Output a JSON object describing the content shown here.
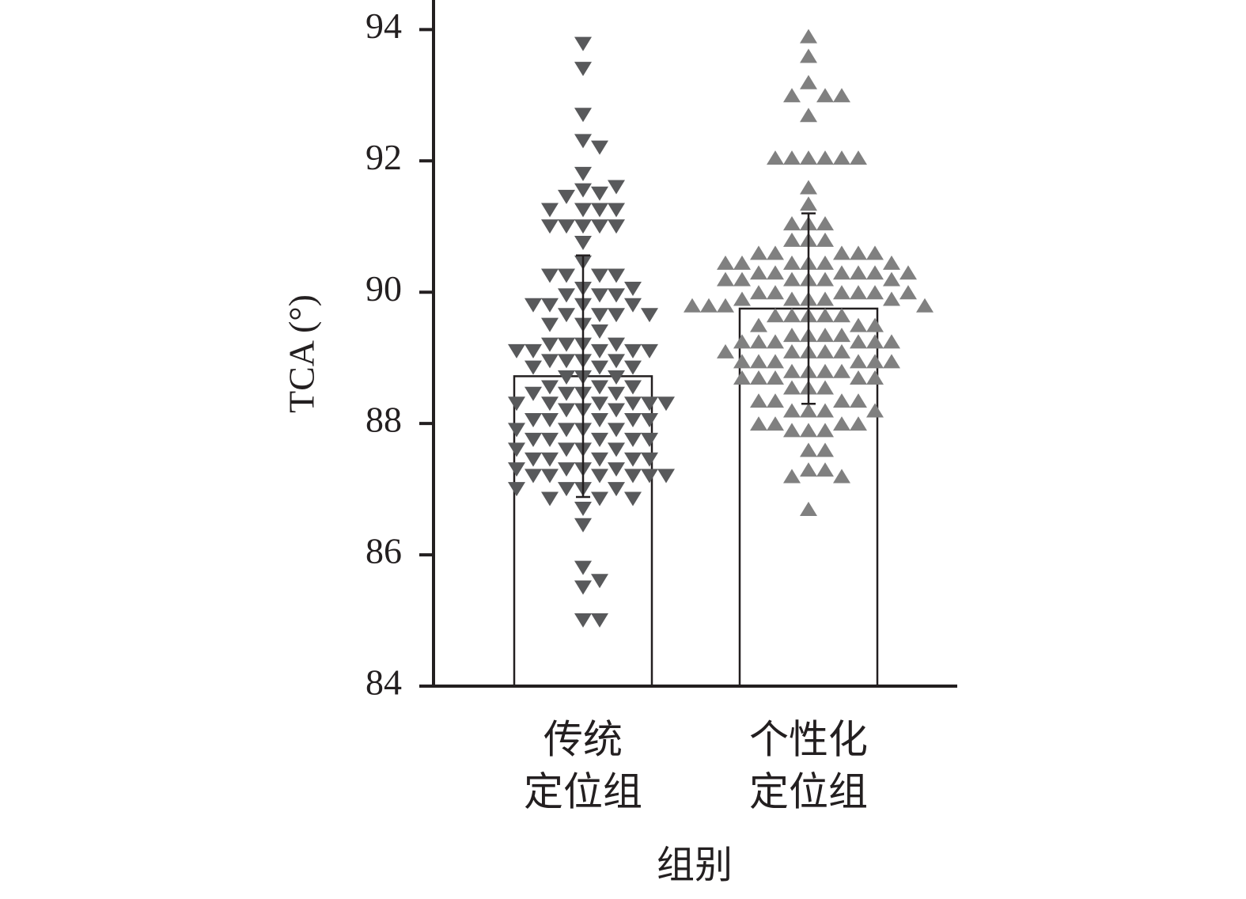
{
  "chart_data": {
    "type": "bar",
    "categories": [
      [
        "传统",
        "定位组"
      ],
      [
        "个性化",
        "定位组"
      ]
    ],
    "values": [
      88.72,
      89.75
    ],
    "errors": [
      1.84,
      1.45
    ],
    "points": [
      [
        93.78,
        93.4,
        92.7,
        92.3,
        92.2,
        91.8,
        91.55,
        91.5,
        91.45,
        91.6,
        91.25,
        91.25,
        91.25,
        91.25,
        91.0,
        91.0,
        91.0,
        91.0,
        91.0,
        90.75,
        90.45,
        90.25,
        90.25,
        90.25,
        90.25,
        90.05,
        90.05,
        89.95,
        89.95,
        89.95,
        89.8,
        89.8,
        89.8,
        89.8,
        89.65,
        89.65,
        89.65,
        89.65,
        89.5,
        89.5,
        89.4,
        89.2,
        89.2,
        89.2,
        89.2,
        89.1,
        89.1,
        89.1,
        89.1,
        89.1,
        88.95,
        88.95,
        88.95,
        88.95,
        88.85,
        88.85,
        88.85,
        88.7,
        88.7,
        88.7,
        88.55,
        88.55,
        88.55,
        88.45,
        88.45,
        88.45,
        88.45,
        88.3,
        88.3,
        88.3,
        88.3,
        88.3,
        88.3,
        88.2,
        88.2,
        88.2,
        88.05,
        88.05,
        88.05,
        88.05,
        88.05,
        87.9,
        87.9,
        87.9,
        87.9,
        87.75,
        87.75,
        87.75,
        87.75,
        87.75,
        87.6,
        87.6,
        87.6,
        87.6,
        87.45,
        87.45,
        87.45,
        87.45,
        87.45,
        87.3,
        87.3,
        87.3,
        87.3,
        87.2,
        87.2,
        87.2,
        87.2,
        87.2,
        87.2,
        87.0,
        87.0,
        87.0,
        87.0,
        86.85,
        86.85,
        86.85,
        86.7,
        86.45,
        85.8,
        85.6,
        85.5,
        85.0,
        85.0
      ],
      [
        93.9,
        93.6,
        93.2,
        93.0,
        93.0,
        93.0,
        92.7,
        92.05,
        92.05,
        92.05,
        92.05,
        92.05,
        92.05,
        91.6,
        91.35,
        91.05,
        91.05,
        91.05,
        90.8,
        90.8,
        90.8,
        90.6,
        90.6,
        90.6,
        90.6,
        90.6,
        90.45,
        90.45,
        90.45,
        90.45,
        90.45,
        90.45,
        90.3,
        90.3,
        90.3,
        90.3,
        90.3,
        90.3,
        90.2,
        90.2,
        90.2,
        90.2,
        90.2,
        90.2,
        90.0,
        90.0,
        90.0,
        90.0,
        90.0,
        90.0,
        89.9,
        89.9,
        89.9,
        89.9,
        89.9,
        89.8,
        89.8,
        89.8,
        89.8,
        89.65,
        89.65,
        89.65,
        89.65,
        89.65,
        89.5,
        89.5,
        89.5,
        89.35,
        89.35,
        89.35,
        89.35,
        89.25,
        89.25,
        89.25,
        89.25,
        89.25,
        89.25,
        89.1,
        89.1,
        89.1,
        89.1,
        89.1,
        88.95,
        88.95,
        88.95,
        88.95,
        88.95,
        88.95,
        88.8,
        88.8,
        88.8,
        88.8,
        88.7,
        88.7,
        88.7,
        88.7,
        88.7,
        88.55,
        88.55,
        88.55,
        88.35,
        88.35,
        88.35,
        88.35,
        88.2,
        88.2,
        88.2,
        88.2,
        88.0,
        88.0,
        88.0,
        88.0,
        87.9,
        87.9,
        87.9,
        87.6,
        87.6,
        87.3,
        87.3,
        87.2,
        87.2,
        86.7
      ]
    ],
    "point_colors": [
      "#58595b",
      "#808080"
    ],
    "xlabel": "组别",
    "ylabel": "TCA (°)",
    "ylim": [
      84,
      94.45
    ],
    "yticks": [
      84,
      86,
      88,
      90,
      92,
      94
    ]
  }
}
